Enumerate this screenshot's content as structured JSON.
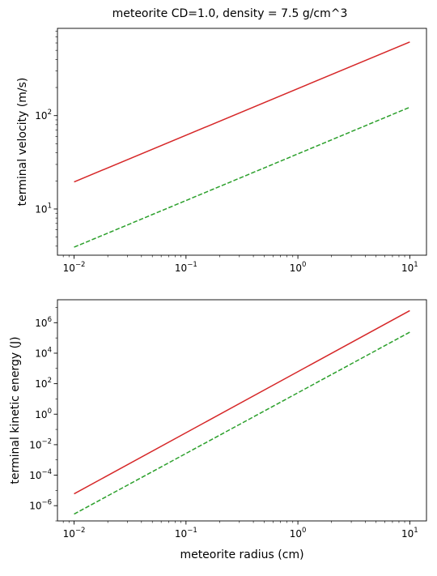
{
  "figure": {
    "title": "meteorite CD=1.0, density = 7.5 g/cm^3"
  },
  "chart_data": [
    {
      "type": "line",
      "title": "",
      "xlabel": "",
      "ylabel": "terminal velocity (m/s)",
      "xscale": "log",
      "yscale": "log",
      "xlim": [
        0.0071,
        14.1
      ],
      "ylim": [
        3.2,
        860
      ],
      "grid": false,
      "x_ticks": [
        {
          "value": 0.01,
          "base": "10",
          "exp": "−2"
        },
        {
          "value": 0.1,
          "base": "10",
          "exp": "−1"
        },
        {
          "value": 1,
          "base": "10",
          "exp": "0"
        },
        {
          "value": 10,
          "base": "10",
          "exp": "1"
        }
      ],
      "y_ticks": [
        {
          "value": 10,
          "base": "10",
          "exp": "1"
        },
        {
          "value": 100,
          "base": "10",
          "exp": "2"
        }
      ],
      "series": [
        {
          "color": "#d62728",
          "dash": "solid",
          "x": [
            0.01,
            10
          ],
          "y": [
            19.5,
            615
          ]
        },
        {
          "color": "#2ca02c",
          "dash": "dashed",
          "x": [
            0.01,
            10
          ],
          "y": [
            3.9,
            123
          ]
        }
      ]
    },
    {
      "type": "line",
      "title": "",
      "xlabel": "meteorite radius (cm)",
      "ylabel": "terminal kinetic energy (J)",
      "xscale": "log",
      "yscale": "log",
      "xlim": [
        0.0071,
        14.1
      ],
      "ylim": [
        1e-07,
        32000000.0
      ],
      "grid": false,
      "x_ticks": [
        {
          "value": 0.01,
          "base": "10",
          "exp": "−2"
        },
        {
          "value": 0.1,
          "base": "10",
          "exp": "−1"
        },
        {
          "value": 1,
          "base": "10",
          "exp": "0"
        },
        {
          "value": 10,
          "base": "10",
          "exp": "1"
        }
      ],
      "y_ticks": [
        {
          "value": 1e-06,
          "base": "10",
          "exp": "−6"
        },
        {
          "value": 0.0001,
          "base": "10",
          "exp": "−4"
        },
        {
          "value": 0.01,
          "base": "10",
          "exp": "−2"
        },
        {
          "value": 1,
          "base": "10",
          "exp": "0"
        },
        {
          "value": 100.0,
          "base": "10",
          "exp": "2"
        },
        {
          "value": 10000.0,
          "base": "10",
          "exp": "4"
        },
        {
          "value": 1000000.0,
          "base": "10",
          "exp": "6"
        }
      ],
      "series": [
        {
          "color": "#d62728",
          "dash": "solid",
          "x": [
            0.01,
            10
          ],
          "y": [
            6e-06,
            6200000.0
          ]
        },
        {
          "color": "#2ca02c",
          "dash": "dashed",
          "x": [
            0.01,
            10
          ],
          "y": [
            2.8e-07,
            240000.0
          ]
        }
      ]
    }
  ]
}
